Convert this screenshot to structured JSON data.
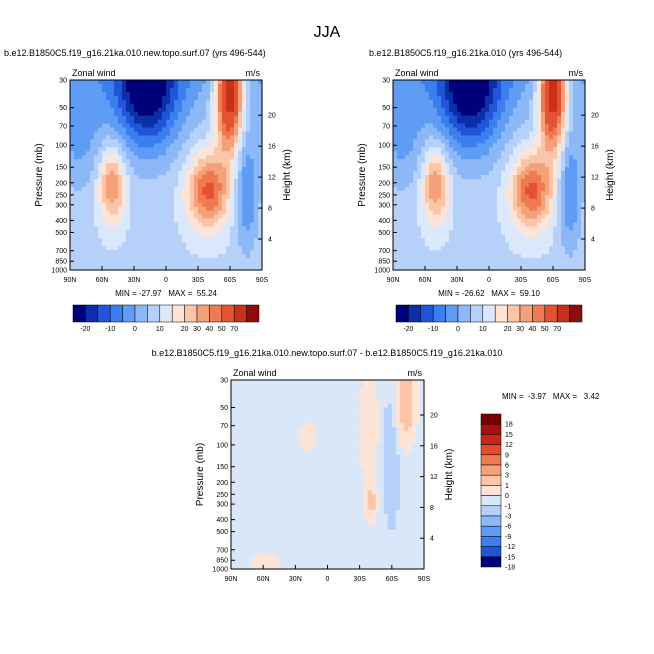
{
  "figure": {
    "title": "JJA"
  },
  "chart_data": [
    {
      "type": "heatmap",
      "id": "top-left",
      "title": "b.e12.B1850C5.f19_g16.21ka.010.new.topo.surf.07 (yrs 496-544)",
      "left_label": "Zonal wind",
      "right_label": "m/s",
      "xlabel": "",
      "ylabel": "Pressure (mb)",
      "y2label": "Height (km)",
      "x_ticks": [
        "90N",
        "60N",
        "30N",
        "0",
        "30S",
        "60S",
        "90S"
      ],
      "y_ticks": [
        30,
        50,
        70,
        100,
        150,
        200,
        250,
        300,
        400,
        500,
        700,
        850,
        1000
      ],
      "y2_ticks": [
        4,
        8,
        12,
        16,
        20
      ],
      "ylim": [
        1000,
        30
      ],
      "xlim": [
        "90N",
        "90S"
      ],
      "stats": "MIN = -27.97   MAX =  55.24",
      "colorbar_labels": [
        "-20",
        "-10",
        "0",
        "10",
        "20",
        "30",
        "40",
        "50",
        "70"
      ]
    },
    {
      "type": "heatmap",
      "id": "top-right",
      "title": "b.e12.B1850C5.f19_g16.21ka.010 (yrs 496-544)",
      "left_label": "Zonal wind",
      "right_label": "m/s",
      "xlabel": "",
      "ylabel": "Pressure (mb)",
      "y2label": "Height (km)",
      "x_ticks": [
        "90N",
        "60N",
        "30N",
        "0",
        "30S",
        "60S",
        "90S"
      ],
      "y_ticks": [
        30,
        50,
        70,
        100,
        150,
        200,
        250,
        300,
        400,
        500,
        700,
        850,
        1000
      ],
      "y2_ticks": [
        4,
        8,
        12,
        16,
        20
      ],
      "ylim": [
        1000,
        30
      ],
      "xlim": [
        "90N",
        "90S"
      ],
      "stats": "MIN = -26.62   MAX =  59.10",
      "colorbar_labels": [
        "-20",
        "-10",
        "0",
        "10",
        "20",
        "30",
        "40",
        "50",
        "70"
      ]
    },
    {
      "type": "heatmap",
      "id": "bottom-diff",
      "title": "b.e12.B1850C5.f19_g16.21ka.010.new.topo.surf.07 - b.e12.B1850C5.f19_g16.21ka.010",
      "left_label": "Zonal wind",
      "right_label": "m/s",
      "xlabel": "",
      "ylabel": "Pressure (mb)",
      "y2label": "Height (km)",
      "x_ticks": [
        "90N",
        "60N",
        "30N",
        "0",
        "30S",
        "60S",
        "90S"
      ],
      "y_ticks": [
        30,
        50,
        70,
        100,
        150,
        200,
        250,
        300,
        400,
        500,
        700,
        850,
        1000
      ],
      "y2_ticks": [
        4,
        8,
        12,
        16,
        20
      ],
      "ylim": [
        1000,
        30
      ],
      "xlim": [
        "90N",
        "90S"
      ],
      "stats": "MIN =  -3.97   MAX =   3.42",
      "colorbar_labels": [
        "18",
        "15",
        "12",
        "9",
        "6",
        "3",
        "1",
        "0",
        "-1",
        "-3",
        "-6",
        "-9",
        "-12",
        "-15",
        "-18"
      ]
    }
  ],
  "colors": {
    "wind_scale": [
      "#00007a",
      "#0b2fa8",
      "#1f55d6",
      "#3a7ef0",
      "#5f9cf5",
      "#8db8f7",
      "#b6d1f9",
      "#dbe8fb",
      "#fde4d6",
      "#fbc6a8",
      "#f6a07a",
      "#ef7a52",
      "#e4522f",
      "#c9301a",
      "#8e0c0c"
    ],
    "diff_scale": [
      "#7a0000",
      "#a80f0f",
      "#c8281a",
      "#e04c2c",
      "#ef7a52",
      "#f6a07a",
      "#fbc6a8",
      "#fde4d6",
      "#d9e7f8",
      "#b6d1f9",
      "#8db8f7",
      "#5f9cf5",
      "#3a7ef0",
      "#1f55d6",
      "#00007a"
    ]
  }
}
